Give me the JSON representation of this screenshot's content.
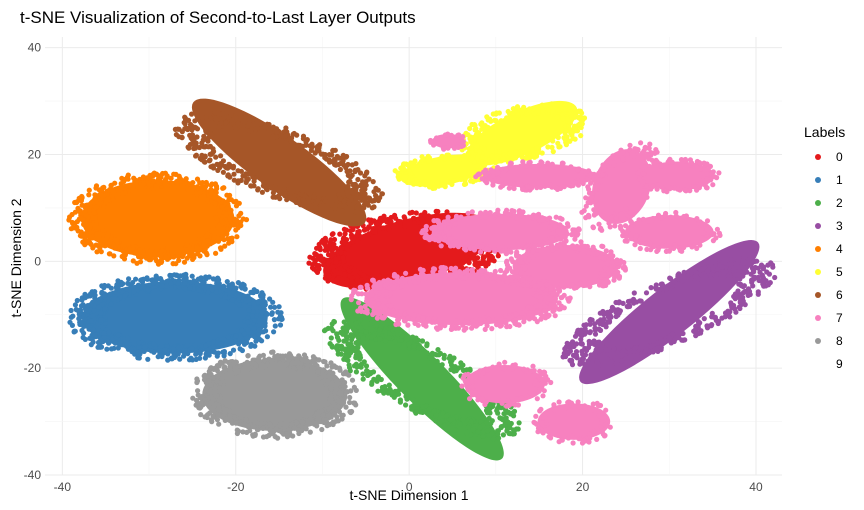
{
  "chart_data": {
    "type": "scatter",
    "title": "t-SNE Visualization of Second-to-Last Layer Outputs",
    "xlabel": "t-SNE Dimension 1",
    "ylabel": "t-SNE Dimension 2",
    "xlim": [
      -42,
      43
    ],
    "ylim": [
      -40,
      42
    ],
    "x_ticks": [
      -40,
      -20,
      0,
      20,
      40
    ],
    "y_ticks": [
      -40,
      -20,
      0,
      20,
      40
    ],
    "grid": true,
    "legend": {
      "title": "Labels",
      "placement": "right"
    },
    "series": [
      {
        "name": "0",
        "color": "#E41A1C",
        "clusters": [
          {
            "cx": 0,
            "cy": 2,
            "rx": 11,
            "ry": 6.5,
            "angle": 15,
            "n": 520
          }
        ]
      },
      {
        "name": "1",
        "color": "#377EB8",
        "clusters": [
          {
            "cx": -27,
            "cy": -10.5,
            "rx": 11.5,
            "ry": 7.5,
            "angle": 0,
            "n": 600
          }
        ]
      },
      {
        "name": "2",
        "color": "#4DAF4A",
        "clusters": [
          {
            "cx": 1.5,
            "cy": -22,
            "rx": 14,
            "ry": 5,
            "angle": -45,
            "n": 460
          }
        ]
      },
      {
        "name": "3",
        "color": "#984EA3",
        "clusters": [
          {
            "cx": 30,
            "cy": -9.5,
            "rx": 14,
            "ry": 5,
            "angle": 38,
            "n": 460
          }
        ]
      },
      {
        "name": "4",
        "color": "#FF7F00",
        "clusters": [
          {
            "cx": -29,
            "cy": 8,
            "rx": 9.5,
            "ry": 8,
            "angle": 0,
            "n": 480
          }
        ]
      },
      {
        "name": "5",
        "color": "#FFFF33",
        "clusters": [
          {
            "cx": 13,
            "cy": 24,
            "rx": 7.5,
            "ry": 4.5,
            "angle": 25,
            "n": 240
          },
          {
            "cx": 4,
            "cy": 17,
            "rx": 5.5,
            "ry": 3,
            "angle": 10,
            "n": 130
          }
        ]
      },
      {
        "name": "6",
        "color": "#A65628",
        "clusters": [
          {
            "cx": -15,
            "cy": 18.5,
            "rx": 13,
            "ry": 5.5,
            "angle": -35,
            "n": 440
          }
        ]
      },
      {
        "name": "7",
        "color": "#F781BF",
        "clusters": [
          {
            "cx": 6,
            "cy": -7,
            "rx": 12,
            "ry": 5.5,
            "angle": 0,
            "n": 420
          },
          {
            "cx": 10.5,
            "cy": 5.5,
            "rx": 8.5,
            "ry": 3.8,
            "angle": 0,
            "n": 220
          },
          {
            "cx": 18,
            "cy": -1,
            "rx": 6.5,
            "ry": 4.5,
            "angle": 0,
            "n": 180
          },
          {
            "cx": 15,
            "cy": 16,
            "rx": 7,
            "ry": 2.5,
            "angle": 0,
            "n": 120
          },
          {
            "cx": 24.5,
            "cy": 14,
            "rx": 3.5,
            "ry": 8,
            "angle": -20,
            "n": 140
          },
          {
            "cx": 31,
            "cy": 16,
            "rx": 4.5,
            "ry": 3,
            "angle": 0,
            "n": 80
          },
          {
            "cx": 30,
            "cy": 5.5,
            "rx": 5.5,
            "ry": 3.5,
            "angle": 0,
            "n": 90
          },
          {
            "cx": 11,
            "cy": -23,
            "rx": 5,
            "ry": 4,
            "angle": 0,
            "n": 90
          },
          {
            "cx": 19,
            "cy": -30,
            "rx": 4.5,
            "ry": 3.8,
            "angle": 0,
            "n": 80
          },
          {
            "cx": 4.5,
            "cy": 22.5,
            "rx": 2,
            "ry": 1.5,
            "angle": 0,
            "n": 25
          }
        ]
      },
      {
        "name": "8",
        "color": "#999999",
        "clusters": [
          {
            "cx": -15.5,
            "cy": -25,
            "rx": 9,
            "ry": 7.5,
            "angle": 0,
            "n": 460
          }
        ]
      },
      {
        "name": "9",
        "color": "#FFFFFF",
        "clusters": []
      }
    ]
  }
}
